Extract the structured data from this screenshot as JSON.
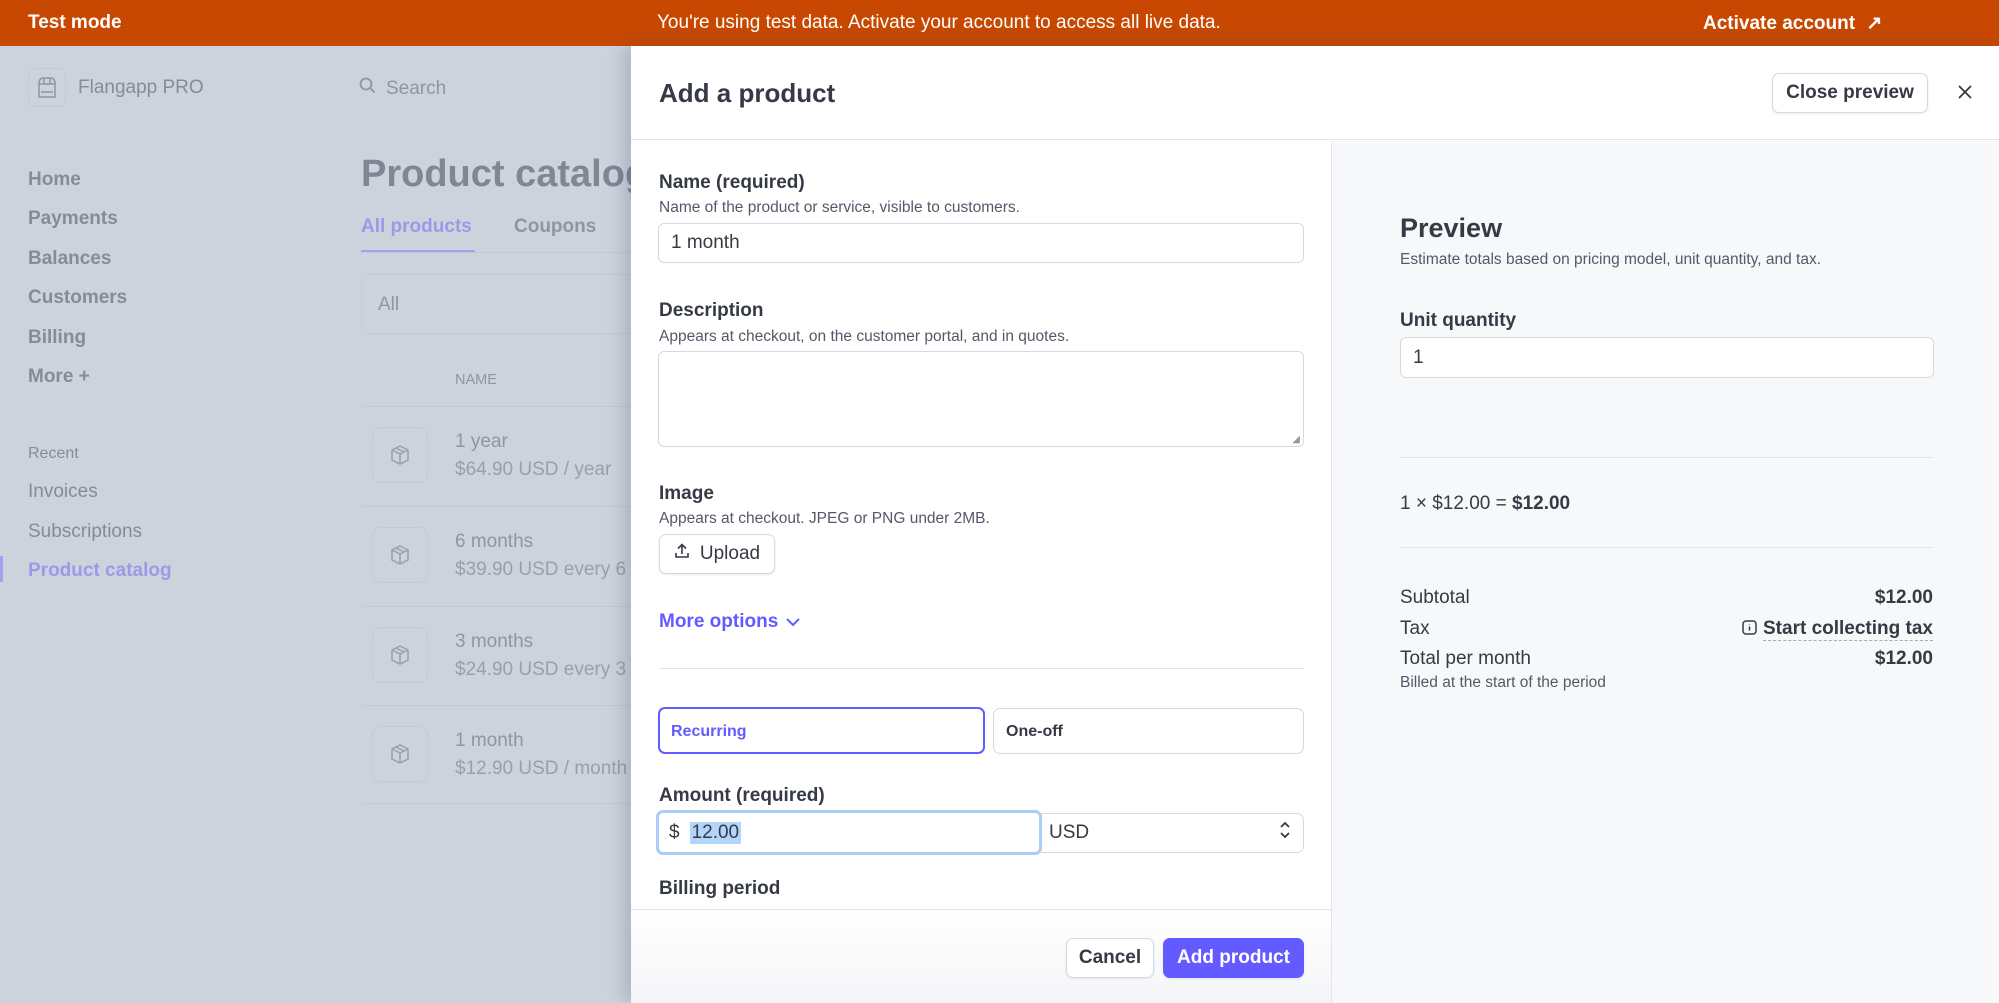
{
  "banner": {
    "mode": "Test mode",
    "message": "You're using test data. Activate your account to access all live data.",
    "activate": "Activate account",
    "activate_icon": "arrow-up-right-icon",
    "color": "#c84801"
  },
  "sidebar": {
    "account": "Flangapp PRO",
    "nav": [
      "Home",
      "Payments",
      "Balances",
      "Customers",
      "Billing",
      "More +"
    ],
    "recent_label": "Recent",
    "recent": [
      "Invoices",
      "Subscriptions",
      "Product catalog"
    ],
    "active": "Product catalog"
  },
  "search": {
    "placeholder": "Search"
  },
  "catalog": {
    "title": "Product catalog",
    "tabs": [
      "All products",
      "Coupons"
    ],
    "active_tab": "All products",
    "filter": "All",
    "column_name": "NAME",
    "rows": [
      {
        "name": "1 year",
        "price": "$64.90 USD / year"
      },
      {
        "name": "6 months",
        "price": "$39.90 USD every 6"
      },
      {
        "name": "3 months",
        "price": "$24.90 USD every 3"
      },
      {
        "name": "1 month",
        "price": "$12.90 USD / month"
      }
    ]
  },
  "modal": {
    "title": "Add a product",
    "close_preview": "Close preview",
    "name": {
      "label": "Name (required)",
      "help": "Name of the product or service, visible to customers.",
      "value": "1 month"
    },
    "description": {
      "label": "Description",
      "help": "Appears at checkout, on the customer portal, and in quotes.",
      "value": ""
    },
    "image": {
      "label": "Image",
      "help": "Appears at checkout. JPEG or PNG under 2MB.",
      "upload": "Upload"
    },
    "more_options": "More options",
    "pricing_types": [
      "Recurring",
      "One-off"
    ],
    "selected_pricing": "Recurring",
    "amount": {
      "label": "Amount (required)",
      "symbol": "$",
      "value": "12.00",
      "currency": "USD"
    },
    "billing_period": {
      "label": "Billing period"
    },
    "cancel": "Cancel",
    "submit": "Add product",
    "accent": "#635bff"
  },
  "preview": {
    "title": "Preview",
    "subtitle": "Estimate totals based on pricing model, unit quantity, and tax.",
    "unit_quantity_label": "Unit quantity",
    "unit_quantity": "1",
    "calc_prefix": "1 × $12.00 = ",
    "calc_result": "$12.00",
    "subtotal_label": "Subtotal",
    "subtotal": "$12.00",
    "tax_label": "Tax",
    "tax_action": "Start collecting tax",
    "total_label": "Total per month",
    "total": "$12.00",
    "billed_note": "Billed at the start of the period"
  }
}
